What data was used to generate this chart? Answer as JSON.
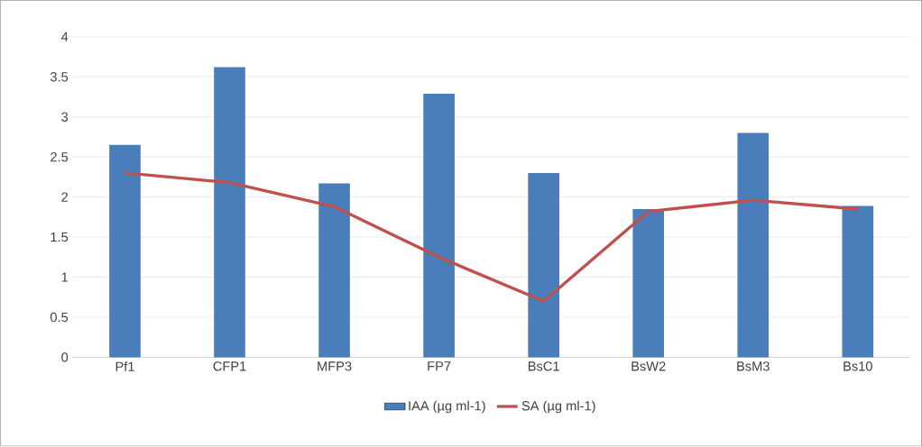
{
  "chart_data": {
    "type": "bar",
    "categories": [
      "Pf1",
      "CFP1",
      "MFP3",
      "FP7",
      "BsC1",
      "BsW2",
      "BsM3",
      "Bs10"
    ],
    "series": [
      {
        "name": "IAA (µg ml-1)",
        "color": "#4a7ebb",
        "values": [
          2.65,
          3.62,
          2.17,
          3.29,
          2.3,
          1.85,
          2.8,
          1.89
        ]
      },
      {
        "name": "SA (µg ml-1)",
        "type": "line",
        "color": "#c0504d",
        "values": [
          2.3,
          2.18,
          1.88,
          1.25,
          0.7,
          1.82,
          1.96,
          1.85
        ]
      }
    ],
    "ylim": [
      0,
      4
    ],
    "yticks": [
      0,
      0.5,
      1,
      1.5,
      2,
      2.5,
      3,
      3.5,
      4
    ],
    "grid": "y",
    "legend": "bottom"
  }
}
